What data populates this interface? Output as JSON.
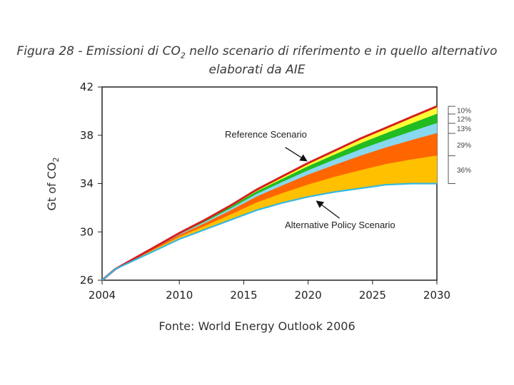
{
  "title": {
    "prefix": "Figura 28 - Emissioni di CO",
    "sub": "2",
    "suffix": " nello scenario di riferimento e in quello alternativo",
    "line2": "elaborati da AIE"
  },
  "source": "Fonte: World Energy Outlook 2006",
  "chart_data": {
    "type": "area",
    "xlabel": "",
    "ylabel": {
      "prefix": "Gt of CO",
      "sub": "2"
    },
    "xlim": [
      2004,
      2030
    ],
    "ylim": [
      26,
      42
    ],
    "x_ticks": [
      2004,
      2010,
      2015,
      2020,
      2025,
      2030
    ],
    "y_ticks": [
      26,
      30,
      34,
      38,
      42
    ],
    "grid": false,
    "x": [
      2004,
      2005,
      2006,
      2008,
      2010,
      2012,
      2014,
      2016,
      2018,
      2020,
      2022,
      2024,
      2026,
      2028,
      2030
    ],
    "series": [
      {
        "name": "Reference Scenario",
        "role": "upper-line",
        "color": "#d42020",
        "values": [
          26.0,
          26.9,
          27.5,
          28.7,
          29.9,
          31.0,
          32.2,
          33.5,
          34.6,
          35.7,
          36.7,
          37.7,
          38.6,
          39.5,
          40.4
        ]
      },
      {
        "name": "Alternative Policy Scenario",
        "role": "lower-line",
        "color": "#33b8e0",
        "values": [
          26.0,
          26.9,
          27.4,
          28.4,
          29.4,
          30.2,
          31.0,
          31.8,
          32.4,
          32.9,
          33.3,
          33.6,
          33.9,
          34.0,
          34.0
        ]
      }
    ],
    "bands": [
      {
        "label": "10%",
        "color": "#ffff33",
        "share": 0.1
      },
      {
        "label": "12%",
        "color": "#22bb22",
        "share": 0.12
      },
      {
        "label": "13%",
        "color": "#88d8f0",
        "share": 0.13
      },
      {
        "label": "29%",
        "color": "#ff6600",
        "share": 0.29
      },
      {
        "label": "36%",
        "color": "#ffc000",
        "share": 0.36
      }
    ],
    "annotations": [
      {
        "text": "Reference Scenario",
        "points_to": "upper-line",
        "x": 2020
      },
      {
        "text": "Alternative Policy Scenario",
        "points_to": "lower-line",
        "x": 2020
      }
    ]
  }
}
